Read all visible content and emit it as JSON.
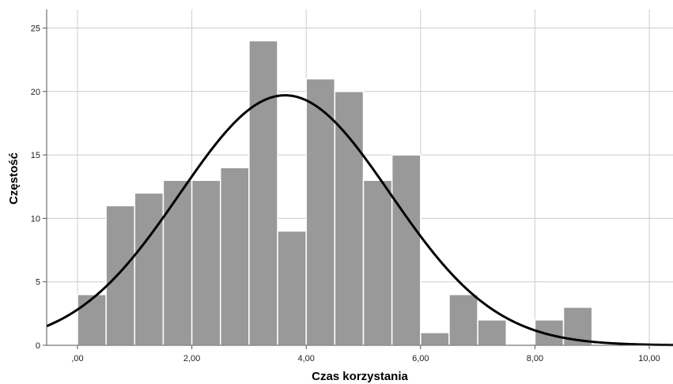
{
  "chart_data": {
    "type": "bar",
    "subtype": "histogram",
    "xlabel": "Czas korzystania",
    "ylabel": "Częstość",
    "xlim": [
      -0.5,
      10.4
    ],
    "ylim": [
      0,
      26.4
    ],
    "x_ticks": [
      {
        "value": 0,
        "label": ",00"
      },
      {
        "value": 2,
        "label": "2,00"
      },
      {
        "value": 4,
        "label": "4,00"
      },
      {
        "value": 6,
        "label": "6,00"
      },
      {
        "value": 8,
        "label": "8,00"
      },
      {
        "value": 10,
        "label": "10,00"
      }
    ],
    "y_ticks": [
      {
        "value": 0,
        "label": "0"
      },
      {
        "value": 5,
        "label": "5"
      },
      {
        "value": 10,
        "label": "10"
      },
      {
        "value": 15,
        "label": "15"
      },
      {
        "value": 20,
        "label": "20"
      },
      {
        "value": 25,
        "label": "25"
      }
    ],
    "bins": [
      {
        "start": 0.0,
        "end": 0.5,
        "count": 4
      },
      {
        "start": 0.5,
        "end": 1.0,
        "count": 11
      },
      {
        "start": 1.0,
        "end": 1.5,
        "count": 12
      },
      {
        "start": 1.5,
        "end": 2.0,
        "count": 13
      },
      {
        "start": 2.0,
        "end": 2.5,
        "count": 13
      },
      {
        "start": 2.5,
        "end": 3.0,
        "count": 14
      },
      {
        "start": 3.0,
        "end": 3.5,
        "count": 24
      },
      {
        "start": 3.5,
        "end": 4.0,
        "count": 9
      },
      {
        "start": 4.0,
        "end": 4.5,
        "count": 21
      },
      {
        "start": 4.5,
        "end": 5.0,
        "count": 20
      },
      {
        "start": 5.0,
        "end": 5.5,
        "count": 13
      },
      {
        "start": 5.5,
        "end": 6.0,
        "count": 15
      },
      {
        "start": 6.0,
        "end": 6.5,
        "count": 1
      },
      {
        "start": 6.5,
        "end": 7.0,
        "count": 4
      },
      {
        "start": 7.0,
        "end": 7.5,
        "count": 2
      },
      {
        "start": 7.5,
        "end": 8.0,
        "count": 0
      },
      {
        "start": 8.0,
        "end": 8.5,
        "count": 2
      },
      {
        "start": 8.5,
        "end": 9.0,
        "count": 3
      }
    ],
    "normal_curve": {
      "mean": 3.63,
      "std_dev": 1.84,
      "peak": 19.7
    },
    "grid": true,
    "colors": {
      "bar_fill": "#999999",
      "bar_edge": "#ffffff",
      "curve": "#000000",
      "grid": "#cccccc",
      "axis": "#555555"
    }
  }
}
